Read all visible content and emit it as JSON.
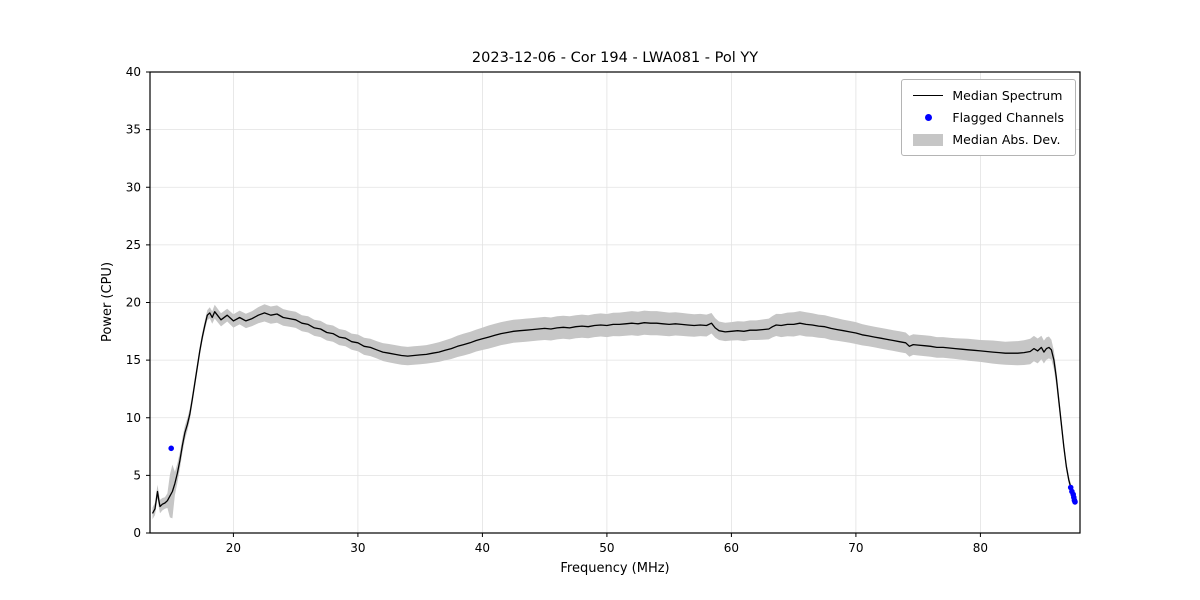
{
  "chart_data": {
    "type": "line",
    "title": "2023-12-06 - Cor 194 - LWA081 - Pol YY",
    "xlabel": "Frequency (MHz)",
    "ylabel": "Power (CPU)",
    "xlim": [
      13.3,
      88.0
    ],
    "ylim": [
      0,
      40
    ],
    "xticks": [
      20,
      30,
      40,
      50,
      60,
      70,
      80
    ],
    "yticks": [
      0,
      5,
      10,
      15,
      20,
      25,
      30,
      35,
      40
    ],
    "grid": true,
    "legend_position": "upper right",
    "colors": {
      "line": "#000000",
      "flagged": "#0000ff",
      "band": "#c6c6c6",
      "grid": "#e2e2e2"
    },
    "series": [
      {
        "name": "Median Spectrum",
        "type": "line",
        "points": [
          [
            13.5,
            1.7
          ],
          [
            13.7,
            2.1
          ],
          [
            13.9,
            3.6
          ],
          [
            14.0,
            2.9
          ],
          [
            14.1,
            2.3
          ],
          [
            14.3,
            2.5
          ],
          [
            14.5,
            2.6
          ],
          [
            14.7,
            2.8
          ],
          [
            14.9,
            3.2
          ],
          [
            15.1,
            3.6
          ],
          [
            15.3,
            4.3
          ],
          [
            15.5,
            5.2
          ],
          [
            15.7,
            6.3
          ],
          [
            15.9,
            7.6
          ],
          [
            16.1,
            8.7
          ],
          [
            16.3,
            9.4
          ],
          [
            16.5,
            10.3
          ],
          [
            16.7,
            11.6
          ],
          [
            16.9,
            13.0
          ],
          [
            17.1,
            14.4
          ],
          [
            17.3,
            15.8
          ],
          [
            17.5,
            17.0
          ],
          [
            17.7,
            18.0
          ],
          [
            17.9,
            18.9
          ],
          [
            18.1,
            19.1
          ],
          [
            18.3,
            18.7
          ],
          [
            18.5,
            19.2
          ],
          [
            19.0,
            18.5
          ],
          [
            19.5,
            18.9
          ],
          [
            20.0,
            18.4
          ],
          [
            20.5,
            18.7
          ],
          [
            21.0,
            18.4
          ],
          [
            21.5,
            18.6
          ],
          [
            22.0,
            18.9
          ],
          [
            22.5,
            19.1
          ],
          [
            23.0,
            18.9
          ],
          [
            23.5,
            19.0
          ],
          [
            24.0,
            18.7
          ],
          [
            24.5,
            18.6
          ],
          [
            25.0,
            18.5
          ],
          [
            25.5,
            18.2
          ],
          [
            26.0,
            18.1
          ],
          [
            26.5,
            17.8
          ],
          [
            27.0,
            17.7
          ],
          [
            27.5,
            17.4
          ],
          [
            28.0,
            17.3
          ],
          [
            28.5,
            17.0
          ],
          [
            29.0,
            16.9
          ],
          [
            29.5,
            16.6
          ],
          [
            30.0,
            16.5
          ],
          [
            30.5,
            16.2
          ],
          [
            31.0,
            16.1
          ],
          [
            31.5,
            15.9
          ],
          [
            32.0,
            15.7
          ],
          [
            32.5,
            15.6
          ],
          [
            33.0,
            15.5
          ],
          [
            33.5,
            15.4
          ],
          [
            34.0,
            15.35
          ],
          [
            34.5,
            15.4
          ],
          [
            35.0,
            15.45
          ],
          [
            35.5,
            15.5
          ],
          [
            36.0,
            15.6
          ],
          [
            36.5,
            15.7
          ],
          [
            37.0,
            15.85
          ],
          [
            37.5,
            16.0
          ],
          [
            38.0,
            16.2
          ],
          [
            38.5,
            16.35
          ],
          [
            39.0,
            16.5
          ],
          [
            39.5,
            16.7
          ],
          [
            40.0,
            16.85
          ],
          [
            40.5,
            17.0
          ],
          [
            41.0,
            17.15
          ],
          [
            41.5,
            17.3
          ],
          [
            42.0,
            17.4
          ],
          [
            42.5,
            17.5
          ],
          [
            43.0,
            17.55
          ],
          [
            43.5,
            17.6
          ],
          [
            44.0,
            17.65
          ],
          [
            44.5,
            17.7
          ],
          [
            45.0,
            17.75
          ],
          [
            45.5,
            17.7
          ],
          [
            46.0,
            17.8
          ],
          [
            46.5,
            17.85
          ],
          [
            47.0,
            17.8
          ],
          [
            47.5,
            17.9
          ],
          [
            48.0,
            17.95
          ],
          [
            48.5,
            17.9
          ],
          [
            49.0,
            18.0
          ],
          [
            49.5,
            18.05
          ],
          [
            50.0,
            18.0
          ],
          [
            50.5,
            18.1
          ],
          [
            51.0,
            18.1
          ],
          [
            51.5,
            18.15
          ],
          [
            52.0,
            18.2
          ],
          [
            52.5,
            18.15
          ],
          [
            53.0,
            18.25
          ],
          [
            53.5,
            18.2
          ],
          [
            54.0,
            18.2
          ],
          [
            54.5,
            18.15
          ],
          [
            55.0,
            18.1
          ],
          [
            55.5,
            18.15
          ],
          [
            56.0,
            18.1
          ],
          [
            56.5,
            18.05
          ],
          [
            57.0,
            18.0
          ],
          [
            57.5,
            18.05
          ],
          [
            58.0,
            18.0
          ],
          [
            58.4,
            18.2
          ],
          [
            58.7,
            17.8
          ],
          [
            59.0,
            17.55
          ],
          [
            59.5,
            17.45
          ],
          [
            60.0,
            17.5
          ],
          [
            60.5,
            17.55
          ],
          [
            61.0,
            17.5
          ],
          [
            61.5,
            17.6
          ],
          [
            62.0,
            17.6
          ],
          [
            62.5,
            17.65
          ],
          [
            63.0,
            17.7
          ],
          [
            63.3,
            17.9
          ],
          [
            63.6,
            18.05
          ],
          [
            64.0,
            18.0
          ],
          [
            64.5,
            18.1
          ],
          [
            65.0,
            18.1
          ],
          [
            65.5,
            18.2
          ],
          [
            66.0,
            18.1
          ],
          [
            66.5,
            18.05
          ],
          [
            67.0,
            17.95
          ],
          [
            67.5,
            17.9
          ],
          [
            68.0,
            17.75
          ],
          [
            68.5,
            17.65
          ],
          [
            69.0,
            17.55
          ],
          [
            69.5,
            17.45
          ],
          [
            70.0,
            17.35
          ],
          [
            70.5,
            17.2
          ],
          [
            71.0,
            17.1
          ],
          [
            71.5,
            17.0
          ],
          [
            72.0,
            16.9
          ],
          [
            72.5,
            16.8
          ],
          [
            73.0,
            16.7
          ],
          [
            73.5,
            16.6
          ],
          [
            74.0,
            16.5
          ],
          [
            74.3,
            16.2
          ],
          [
            74.6,
            16.35
          ],
          [
            75.0,
            16.3
          ],
          [
            75.5,
            16.25
          ],
          [
            76.0,
            16.2
          ],
          [
            76.5,
            16.1
          ],
          [
            77.0,
            16.1
          ],
          [
            77.5,
            16.05
          ],
          [
            78.0,
            16.0
          ],
          [
            78.5,
            15.95
          ],
          [
            79.0,
            15.9
          ],
          [
            79.5,
            15.85
          ],
          [
            80.0,
            15.8
          ],
          [
            80.5,
            15.75
          ],
          [
            81.0,
            15.7
          ],
          [
            81.5,
            15.65
          ],
          [
            82.0,
            15.6
          ],
          [
            82.5,
            15.6
          ],
          [
            83.0,
            15.6
          ],
          [
            83.5,
            15.65
          ],
          [
            84.0,
            15.75
          ],
          [
            84.3,
            16.0
          ],
          [
            84.6,
            15.8
          ],
          [
            84.9,
            16.1
          ],
          [
            85.1,
            15.7
          ],
          [
            85.3,
            16.0
          ],
          [
            85.5,
            16.1
          ],
          [
            85.7,
            15.9
          ],
          [
            85.9,
            15.0
          ],
          [
            86.1,
            13.5
          ],
          [
            86.3,
            11.5
          ],
          [
            86.5,
            9.5
          ],
          [
            86.7,
            7.5
          ],
          [
            86.9,
            5.8
          ],
          [
            87.1,
            4.6
          ],
          [
            87.3,
            3.8
          ],
          [
            87.5,
            3.2
          ],
          [
            87.6,
            2.9
          ]
        ]
      },
      {
        "name": "Flagged Channels",
        "type": "scatter",
        "points": [
          [
            15.0,
            7.35
          ],
          [
            87.25,
            3.95
          ],
          [
            87.35,
            3.6
          ],
          [
            87.45,
            3.35
          ],
          [
            87.5,
            3.1
          ],
          [
            87.55,
            2.85
          ],
          [
            87.6,
            2.7
          ]
        ]
      },
      {
        "name": "Median Abs. Dev.",
        "type": "band",
        "mad_knots": [
          [
            13.5,
            0.5
          ],
          [
            14.0,
            0.6
          ],
          [
            14.5,
            0.5
          ],
          [
            14.8,
            0.7
          ],
          [
            15.0,
            3.0
          ],
          [
            15.3,
            1.0
          ],
          [
            15.7,
            0.7
          ],
          [
            16.5,
            0.5
          ],
          [
            17.5,
            0.4
          ],
          [
            18.0,
            0.45
          ],
          [
            18.5,
            0.6
          ],
          [
            19.5,
            0.55
          ],
          [
            20.5,
            0.6
          ],
          [
            21.5,
            0.65
          ],
          [
            22.5,
            0.75
          ],
          [
            23.5,
            0.75
          ],
          [
            24.5,
            0.7
          ],
          [
            25.5,
            0.7
          ],
          [
            26.5,
            0.7
          ],
          [
            27.5,
            0.7
          ],
          [
            28.5,
            0.7
          ],
          [
            29.5,
            0.7
          ],
          [
            30.5,
            0.75
          ],
          [
            31.5,
            0.75
          ],
          [
            32.5,
            0.8
          ],
          [
            33.5,
            0.8
          ],
          [
            34.5,
            0.8
          ],
          [
            35.5,
            0.8
          ],
          [
            36.5,
            0.85
          ],
          [
            37.5,
            0.9
          ],
          [
            38.5,
            0.95
          ],
          [
            39.5,
            0.95
          ],
          [
            40.5,
            1.0
          ],
          [
            42,
            1.0
          ],
          [
            44,
            1.0
          ],
          [
            46,
            1.0
          ],
          [
            48,
            1.0
          ],
          [
            50,
            1.0
          ],
          [
            52,
            1.05
          ],
          [
            54,
            1.05
          ],
          [
            56,
            1.0
          ],
          [
            58,
            0.95
          ],
          [
            59,
            0.8
          ],
          [
            60,
            0.8
          ],
          [
            61,
            0.85
          ],
          [
            62,
            0.85
          ],
          [
            63,
            0.9
          ],
          [
            64,
            1.0
          ],
          [
            65,
            1.05
          ],
          [
            66,
            1.05
          ],
          [
            67,
            1.0
          ],
          [
            68,
            1.0
          ],
          [
            69,
            0.95
          ],
          [
            70,
            0.95
          ],
          [
            71,
            0.9
          ],
          [
            72,
            0.9
          ],
          [
            73,
            0.9
          ],
          [
            74,
            0.9
          ],
          [
            75,
            0.9
          ],
          [
            76,
            0.9
          ],
          [
            77,
            0.9
          ],
          [
            78,
            0.9
          ],
          [
            79,
            0.95
          ],
          [
            80,
            0.95
          ],
          [
            81,
            1.0
          ],
          [
            82,
            1.0
          ],
          [
            83,
            1.05
          ],
          [
            84,
            1.1
          ],
          [
            84.5,
            1.1
          ],
          [
            85,
            1.0
          ],
          [
            85.5,
            0.95
          ],
          [
            85.9,
            0.8
          ],
          [
            86.3,
            0.6
          ],
          [
            86.7,
            0.45
          ],
          [
            87.1,
            0.35
          ],
          [
            87.6,
            0.3
          ]
        ]
      }
    ]
  }
}
